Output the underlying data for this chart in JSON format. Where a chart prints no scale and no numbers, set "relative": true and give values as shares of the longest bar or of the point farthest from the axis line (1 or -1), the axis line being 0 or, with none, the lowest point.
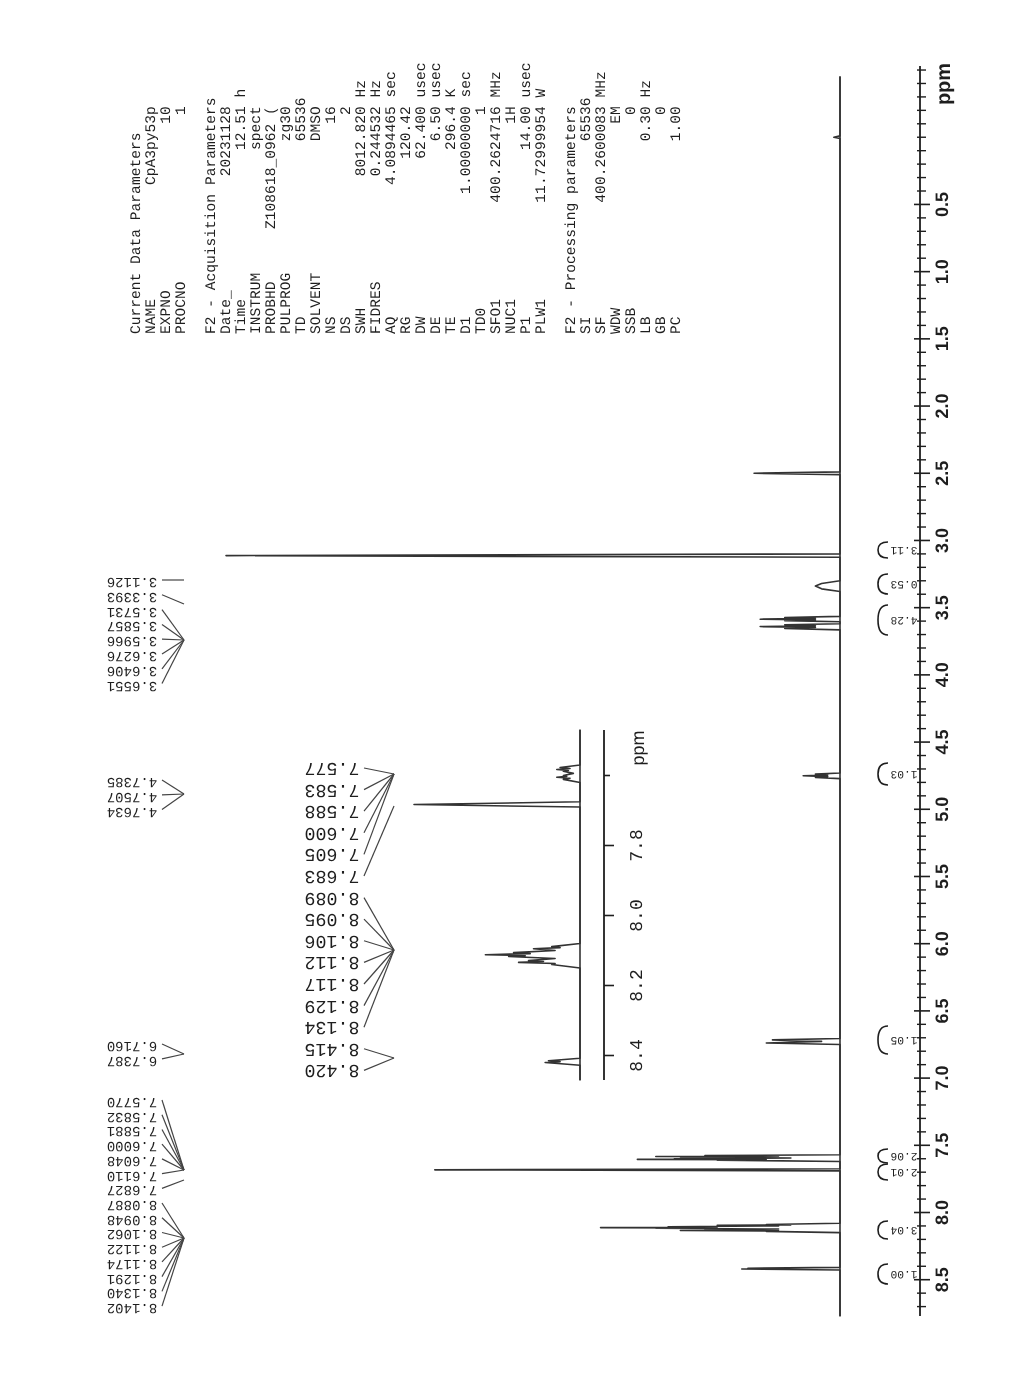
{
  "chart_data": [
    {
      "type": "line",
      "orientation": "horizontal",
      "relative": true,
      "color": "#333333",
      "ylabel": "ppm",
      "ylim": [
        8.77,
        -0.53
      ],
      "yticks": [
        0.5,
        {
          "value": 1,
          "label": "1.0"
        },
        1.5,
        {
          "value": 2,
          "label": "2.0"
        },
        2.5,
        {
          "value": 3,
          "label": "3.0"
        },
        3.5,
        {
          "value": 4,
          "label": "4.0"
        },
        4.5,
        {
          "value": 5,
          "label": "5.0"
        },
        5.5,
        {
          "value": 6,
          "label": "6.0"
        },
        6.5,
        {
          "value": 7,
          "label": "7.0"
        },
        7.5,
        {
          "value": 8,
          "label": "8.0"
        },
        8.5
      ],
      "x": [
        -0.45,
        -0.01,
        0,
        0.01,
        2.49,
        2.5,
        2.51,
        3.1,
        3.1126,
        3.125,
        3.3,
        3.32,
        3.3393,
        3.36,
        3.38,
        3.565,
        3.5731,
        3.579,
        3.5857,
        3.591,
        3.5966,
        3.605,
        3.62,
        3.6276,
        3.634,
        3.6406,
        3.647,
        3.6551,
        3.665,
        4.73,
        4.7385,
        4.745,
        4.7507,
        4.757,
        4.7634,
        4.772,
        6.705,
        6.716,
        6.727,
        6.7387,
        6.75,
        7.57,
        7.577,
        7.58,
        7.5832,
        7.5856,
        7.5881,
        7.594,
        7.6,
        7.6024,
        7.6048,
        7.608,
        7.611,
        7.62,
        7.675,
        7.6827,
        7.69,
        8.08,
        8.0887,
        8.0918,
        8.0948,
        8.1,
        8.1062,
        8.1092,
        8.1122,
        8.1148,
        8.1174,
        8.123,
        8.1291,
        8.1316,
        8.134,
        8.137,
        8.1402,
        8.15,
        8.408,
        8.415,
        8.4175,
        8.42,
        8.428,
        8.77
      ],
      "values": [
        0,
        0,
        -0.01,
        0,
        0,
        -0.14,
        0,
        0,
        -1,
        0,
        0,
        -0.03,
        -0.04,
        -0.03,
        0,
        0,
        -0.09,
        -0.04,
        -0.13,
        -0.04,
        -0.09,
        0,
        0,
        -0.09,
        -0.04,
        -0.13,
        -0.04,
        -0.09,
        0,
        0,
        -0.04,
        -0.02,
        -0.06,
        -0.02,
        -0.04,
        0,
        0,
        -0.11,
        -0.03,
        -0.12,
        0,
        0,
        -0.22,
        -0.1,
        -0.3,
        -0.15,
        -0.26,
        -0.08,
        -0.27,
        -0.2,
        -0.33,
        -0.12,
        -0.2,
        0,
        0,
        -0.66,
        0,
        0,
        -0.12,
        -0.08,
        -0.2,
        -0.1,
        -0.28,
        -0.2,
        -0.39,
        -0.22,
        -0.3,
        -0.1,
        -0.22,
        -0.15,
        -0.26,
        -0.1,
        -0.12,
        0,
        0,
        -0.15,
        -0.1,
        -0.16,
        0,
        0
      ],
      "annotations": [
        "3.1126",
        "3.3393",
        "3.5731",
        "3.5857",
        "3.5966",
        "3.6276",
        "3.6406",
        "3.6551",
        "4.7385",
        "4.7507",
        "4.7634",
        "6.7160",
        "6.7387",
        "7.5770",
        "7.5832",
        "7.5881",
        "7.6000",
        "7.6048",
        "7.6110",
        "7.6827",
        "8.0887",
        "8.0948",
        "8.1062",
        "8.1122",
        "8.1174",
        "8.1291",
        "8.1340",
        "8.1402",
        "3.11",
        "0.53",
        "4.28",
        "1.03",
        "1.05",
        "2.06",
        "2.01",
        "3.04",
        "1.00"
      ]
    },
    {
      "type": "line",
      "orientation": "horizontal",
      "relative": true,
      "color": "#333333",
      "ylabel": "ppm",
      "ylim": [
        8.47,
        7.47
      ],
      "yticks": [
        {
          "value": 7.6,
          "label": null
        },
        7.8,
        {
          "value": 8,
          "label": "8.0"
        },
        8.2,
        8.4
      ],
      "x": [
        7.47,
        7.57,
        7.577,
        7.58,
        7.583,
        7.5856,
        7.588,
        7.594,
        7.6,
        7.6024,
        7.605,
        7.608,
        7.611,
        7.62,
        7.675,
        7.683,
        7.69,
        8.08,
        8.089,
        8.0918,
        8.095,
        8.1,
        8.106,
        8.109,
        8.112,
        8.1148,
        8.117,
        8.123,
        8.129,
        8.1316,
        8.134,
        8.137,
        8.14,
        8.15,
        8.408,
        8.415,
        8.4175,
        8.42,
        8.428,
        8.47
      ],
      "values": [
        0,
        0,
        -0.12,
        -0.06,
        -0.14,
        -0.07,
        -0.1,
        -0.04,
        -0.1,
        -0.08,
        -0.14,
        -0.06,
        -0.1,
        0,
        0,
        -1,
        0,
        0,
        -0.17,
        -0.12,
        -0.28,
        -0.15,
        -0.4,
        -0.3,
        -0.57,
        -0.33,
        -0.43,
        -0.15,
        -0.31,
        -0.22,
        -0.37,
        -0.15,
        -0.17,
        0,
        0,
        -0.19,
        -0.12,
        -0.21,
        0,
        0
      ],
      "annotations": [
        "7.577",
        "7.583",
        "7.588",
        "7.600",
        "7.605",
        "7.683",
        "8.089",
        "8.095",
        "8.106",
        "8.112",
        "8.117",
        "8.129",
        "8.134",
        "8.415",
        "8.420"
      ]
    },
    {
      "type": "other",
      "title": "Current Data Parameters",
      "annotations": [
        "NAME             CpA3py53p",
        "EXPNO                   10",
        "PROCNO                   1"
      ]
    },
    {
      "type": "other",
      "title": "F2 - Acquisition Parameters",
      "annotations": [
        "Date_             20231128",
        "Time                 12.51 h",
        "INSTRUM              spect",
        "PROBHD      Z108618_0962 (",
        "PULPROG               zg30",
        "TD                    65536",
        "SOLVENT               DMSO",
        "NS                      16",
        "DS                       2",
        "SWH               8012.820 Hz",
        "FIDRES            0.244532 Hz",
        "AQ               4.0894465 sec",
        "RG                  120.42",
        "DW                  62.400 usec",
        "DE                    6.50 usec",
        "TE                   296.4 K",
        "D1              1.00000000 sec",
        "TD0                      1",
        "SFO1           400.2624716 MHz",
        "NUC1                    1H",
        "P1                   14.00 usec",
        "PLW1           11.72999954 W"
      ]
    },
    {
      "type": "other",
      "title": "F2 - Processing parameters",
      "annotations": [
        "SI                    65536",
        "SF             400.2600083 MHz",
        "WDW                     EM",
        "SSB                      0",
        "LB                    0.30 Hz",
        "GB                       0",
        "PC                    1.00"
      ]
    }
  ]
}
